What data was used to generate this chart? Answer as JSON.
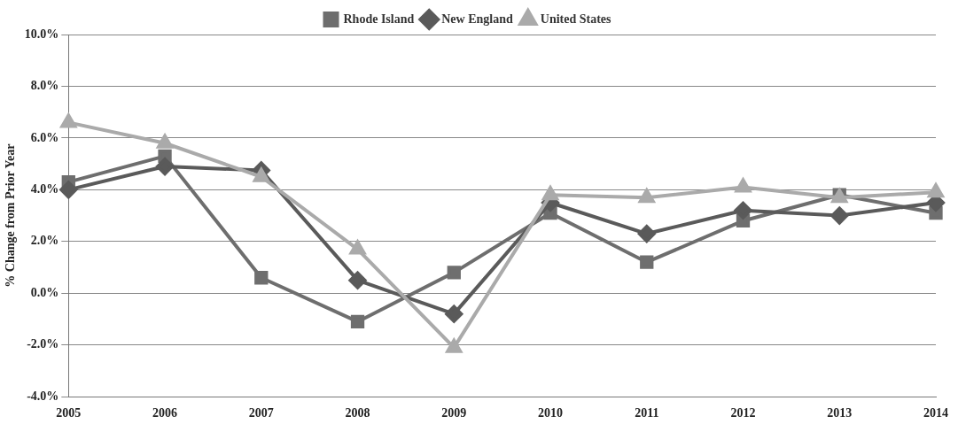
{
  "chart_data": {
    "type": "line",
    "ylabel": "% Change from Prior Year",
    "categories": [
      "2005",
      "2006",
      "2007",
      "2008",
      "2009",
      "2010",
      "2011",
      "2012",
      "2013",
      "2014"
    ],
    "series": [
      {
        "name": "Rhode Island",
        "color": "#6e6e6e",
        "marker": "square",
        "values": [
          4.3,
          5.3,
          0.6,
          -1.1,
          0.8,
          3.1,
          1.2,
          2.8,
          3.8,
          3.1
        ]
      },
      {
        "name": "New England",
        "color": "#5a5a5a",
        "marker": "diamond",
        "values": [
          4.0,
          4.9,
          4.75,
          0.5,
          -0.8,
          3.5,
          2.3,
          3.2,
          3.0,
          3.5
        ]
      },
      {
        "name": "United States",
        "color": "#aaaaaa",
        "marker": "triangle",
        "values": [
          6.6,
          5.8,
          4.5,
          1.7,
          -2.1,
          3.8,
          3.7,
          4.1,
          3.7,
          3.9
        ]
      }
    ],
    "ylim": [
      -4,
      10
    ],
    "yticks": [
      {
        "value": -4,
        "label": "-4.0%"
      },
      {
        "value": -2,
        "label": "-2.0%"
      },
      {
        "value": 0,
        "label": "0.0%"
      },
      {
        "value": 2,
        "label": "2.0%"
      },
      {
        "value": 4,
        "label": "4.0%"
      },
      {
        "value": 6,
        "label": "6.0%"
      },
      {
        "value": 8,
        "label": "8.0%"
      },
      {
        "value": 10,
        "label": "10.0%"
      }
    ],
    "grid": "y",
    "legend": "top"
  }
}
